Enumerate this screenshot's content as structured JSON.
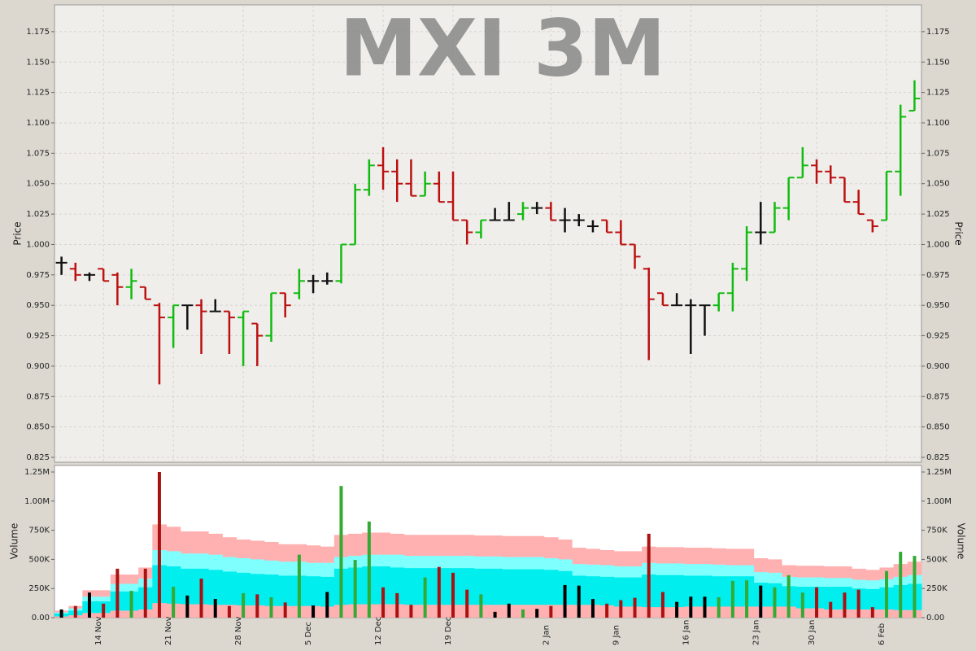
{
  "chart_data": [
    {
      "type": "ohlc",
      "title": "MXI 3M",
      "y_label": "Price",
      "categories": [
        null,
        null,
        null,
        "14 Nov",
        null,
        null,
        null,
        null,
        "21 Nov",
        null,
        null,
        null,
        null,
        "28 Nov",
        null,
        null,
        null,
        null,
        "5 Dec",
        null,
        null,
        null,
        null,
        "12 Dec",
        null,
        null,
        null,
        null,
        "19 Dec",
        null,
        null,
        null,
        null,
        null,
        null,
        "2 Jan",
        null,
        null,
        null,
        null,
        "9 Jan",
        null,
        null,
        null,
        null,
        "16 Jan",
        null,
        null,
        null,
        null,
        "23 Jan",
        null,
        null,
        null,
        "30 Jan",
        null,
        null,
        null,
        null,
        "6 Feb",
        null,
        null
      ],
      "open": [
        0.985,
        0.98,
        0.975,
        0.98,
        0.975,
        0.965,
        0.965,
        0.95,
        0.94,
        0.95,
        0.95,
        0.945,
        0.945,
        0.94,
        0.935,
        0.925,
        0.96,
        0.96,
        0.97,
        0.97,
        0.97,
        1.0,
        1.045,
        1.065,
        1.06,
        1.05,
        1.04,
        1.05,
        1.035,
        1.02,
        1.01,
        1.02,
        1.02,
        1.025,
        1.03,
        1.03,
        1.02,
        1.02,
        1.015,
        1.02,
        1.01,
        1.0,
        0.98,
        0.96,
        0.95,
        0.95,
        0.95,
        0.95,
        0.96,
        0.98,
        1.01,
        1.01,
        1.03,
        1.055,
        1.065,
        1.06,
        1.055,
        1.035,
        1.02,
        1.02,
        1.06,
        1.11
      ],
      "high": [
        0.99,
        0.985,
        0.977,
        0.98,
        0.977,
        0.98,
        0.965,
        0.952,
        0.95,
        0.95,
        0.955,
        0.955,
        0.945,
        0.945,
        0.935,
        0.96,
        0.96,
        0.98,
        0.975,
        0.977,
        1.0,
        1.05,
        1.07,
        1.08,
        1.07,
        1.07,
        1.06,
        1.06,
        1.06,
        1.02,
        1.02,
        1.03,
        1.035,
        1.035,
        1.035,
        1.035,
        1.03,
        1.025,
        1.02,
        1.02,
        1.02,
        1.0,
        0.981,
        0.96,
        0.96,
        0.955,
        0.95,
        0.96,
        0.985,
        1.015,
        1.035,
        1.035,
        1.055,
        1.08,
        1.07,
        1.065,
        1.055,
        1.045,
        1.02,
        1.06,
        1.115,
        1.135
      ],
      "low": [
        0.975,
        0.97,
        0.97,
        0.97,
        0.95,
        0.955,
        0.955,
        0.885,
        0.915,
        0.93,
        0.91,
        0.945,
        0.91,
        0.9,
        0.9,
        0.92,
        0.94,
        0.955,
        0.96,
        0.967,
        0.968,
        1.0,
        1.04,
        1.045,
        1.035,
        1.04,
        1.04,
        1.035,
        1.02,
        1.0,
        1.005,
        1.02,
        1.02,
        1.02,
        1.025,
        1.02,
        1.01,
        1.015,
        1.01,
        1.01,
        1.0,
        0.98,
        0.905,
        0.95,
        0.95,
        0.91,
        0.925,
        0.945,
        0.945,
        0.97,
        1.0,
        1.01,
        1.02,
        1.055,
        1.05,
        1.05,
        1.035,
        1.025,
        1.01,
        1.02,
        1.04,
        1.11
      ],
      "close": [
        0.985,
        0.975,
        0.975,
        0.97,
        0.965,
        0.97,
        0.955,
        0.94,
        0.95,
        0.95,
        0.945,
        0.945,
        0.94,
        0.945,
        0.925,
        0.96,
        0.95,
        0.97,
        0.97,
        0.97,
        1.0,
        1.045,
        1.065,
        1.06,
        1.05,
        1.04,
        1.05,
        1.035,
        1.02,
        1.01,
        1.02,
        1.02,
        1.02,
        1.03,
        1.03,
        1.02,
        1.02,
        1.02,
        1.015,
        1.01,
        1.0,
        0.99,
        0.955,
        0.95,
        0.95,
        0.95,
        0.95,
        0.96,
        0.98,
        1.01,
        1.01,
        1.03,
        1.055,
        1.065,
        1.06,
        1.055,
        1.035,
        1.025,
        1.015,
        1.06,
        1.105,
        1.12
      ],
      "colors": {
        "up": "#11bb11",
        "down": "#bb1111",
        "flat": "#111111"
      },
      "ylim": [
        0.821,
        1.197
      ],
      "yticks": [
        0.825,
        {
          "value": 0.85,
          "label": "0.850"
        },
        0.875,
        {
          "value": 0.9,
          "label": "0.900"
        },
        0.925,
        {
          "value": 0.95,
          "label": "0.950"
        },
        0.975,
        {
          "value": 1,
          "label": "1.000"
        },
        1.025,
        {
          "value": 1.05,
          "label": "1.050"
        },
        1.075,
        {
          "value": 1.1,
          "label": "1.100"
        },
        1.125,
        {
          "value": 1.15,
          "label": "1.150"
        },
        1.175
      ],
      "grid": true
    },
    {
      "type": "bar",
      "y_label": "Volume",
      "values": [
        70000,
        100000,
        215000,
        120000,
        420000,
        230000,
        420000,
        1250000,
        265000,
        190000,
        335000,
        160000,
        100000,
        210000,
        200000,
        175000,
        130000,
        540000,
        105000,
        220000,
        1130000,
        495000,
        825000,
        260000,
        210000,
        110000,
        345000,
        435000,
        385000,
        240000,
        200000,
        50000,
        120000,
        70000,
        75000,
        100000,
        280000,
        275000,
        160000,
        120000,
        150000,
        170000,
        720000,
        220000,
        135000,
        180000,
        180000,
        175000,
        315000,
        320000,
        275000,
        260000,
        365000,
        215000,
        260000,
        135000,
        215000,
        240000,
        90000,
        400000,
        565000,
        530000
      ],
      "colors": {
        "up": "#33aa33",
        "down": "#aa1111",
        "flat": "#000000"
      },
      "bands": [
        {
          "color": "#ffb0b0",
          "values": [
            60000,
            100000,
            235000,
            235000,
            370000,
            370000,
            430000,
            800000,
            780000,
            740000,
            740000,
            720000,
            690000,
            670000,
            660000,
            650000,
            630000,
            630000,
            620000,
            610000,
            710000,
            720000,
            730000,
            730000,
            720000,
            710000,
            710000,
            710000,
            710000,
            710000,
            705000,
            705000,
            700000,
            700000,
            700000,
            690000,
            670000,
            600000,
            590000,
            580000,
            570000,
            570000,
            610000,
            605000,
            605000,
            600000,
            600000,
            595000,
            590000,
            590000,
            510000,
            500000,
            450000,
            445000,
            445000,
            440000,
            440000,
            420000,
            410000,
            430000,
            460000,
            480000
          ]
        },
        {
          "color": "#80ffff",
          "values": [
            45000,
            80000,
            180000,
            180000,
            290000,
            290000,
            335000,
            580000,
            570000,
            550000,
            550000,
            540000,
            520000,
            510000,
            500000,
            490000,
            480000,
            480000,
            470000,
            470000,
            520000,
            530000,
            540000,
            540000,
            540000,
            530000,
            530000,
            530000,
            530000,
            530000,
            525000,
            525000,
            520000,
            520000,
            520000,
            510000,
            500000,
            460000,
            455000,
            450000,
            440000,
            440000,
            470000,
            465000,
            465000,
            460000,
            460000,
            455000,
            450000,
            450000,
            390000,
            385000,
            350000,
            345000,
            345000,
            340000,
            340000,
            325000,
            320000,
            330000,
            350000,
            365000
          ]
        },
        {
          "color": "#00eeee",
          "values": [
            35000,
            60000,
            140000,
            140000,
            225000,
            225000,
            260000,
            450000,
            440000,
            420000,
            420000,
            410000,
            395000,
            385000,
            375000,
            370000,
            360000,
            360000,
            355000,
            350000,
            420000,
            430000,
            440000,
            440000,
            430000,
            425000,
            425000,
            425000,
            425000,
            425000,
            420000,
            420000,
            415000,
            415000,
            415000,
            410000,
            400000,
            360000,
            355000,
            350000,
            345000,
            345000,
            370000,
            365000,
            365000,
            360000,
            360000,
            355000,
            355000,
            355000,
            300000,
            295000,
            270000,
            265000,
            265000,
            265000,
            265000,
            250000,
            245000,
            260000,
            280000,
            290000
          ]
        },
        {
          "color": "#ffb0b0",
          "values": [
            10000,
            20000,
            40000,
            40000,
            60000,
            60000,
            70000,
            125000,
            120000,
            115000,
            115000,
            110000,
            110000,
            105000,
            105000,
            100000,
            100000,
            100000,
            100000,
            95000,
            110000,
            115000,
            115000,
            115000,
            115000,
            110000,
            110000,
            110000,
            110000,
            110000,
            110000,
            110000,
            110000,
            110000,
            110000,
            110000,
            110000,
            110000,
            110000,
            105000,
            95000,
            95000,
            90000,
            90000,
            90000,
            95000,
            95000,
            95000,
            95000,
            95000,
            95000,
            95000,
            95000,
            80000,
            80000,
            70000,
            70000,
            70000,
            70000,
            70000,
            65000,
            65000
          ]
        }
      ],
      "ylim": [
        0,
        1306000
      ],
      "yticks": [
        {
          "value": 0,
          "label": "0.00"
        },
        {
          "value": 250000,
          "label": "250K"
        },
        {
          "value": 500000,
          "label": "500K"
        },
        {
          "value": 750000,
          "label": "750K"
        },
        {
          "value": 1000000,
          "label": "1.00M"
        },
        {
          "value": 1250000,
          "label": "1.25M"
        }
      ],
      "grid": true
    }
  ]
}
